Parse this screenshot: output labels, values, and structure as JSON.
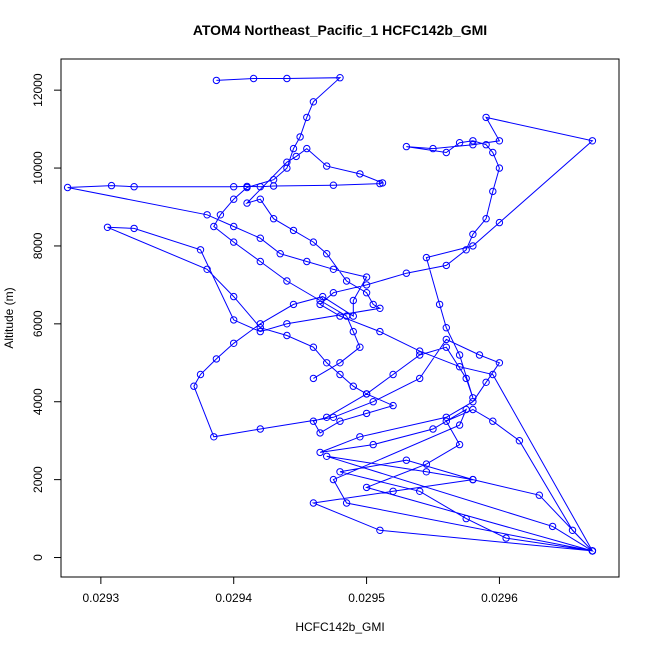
{
  "chart_data": {
    "type": "line",
    "title": "ATOM4 Northeast_Pacific_1 HCFC142b_GMI",
    "xlabel": "HCFC142b_GMI",
    "ylabel": "Altitude (m)",
    "xlim": [
      0.02927,
      0.02969
    ],
    "ylim": [
      -500,
      12800
    ],
    "x_ticks": [
      "0.0293",
      "0.0294",
      "0.0295",
      "0.0296"
    ],
    "y_ticks": [
      "0",
      "2000",
      "4000",
      "6000",
      "8000",
      "10000",
      "12000"
    ],
    "grid": false,
    "legend": "none",
    "series_color": "#0000ff",
    "marker": "open-circle",
    "series": [
      {
        "x": [
          0.02967,
          0.029605,
          0.029575,
          0.02954,
          0.02948,
          0.02953,
          0.02958,
          0.02963,
          0.02967,
          0.0295,
          0.029545,
          0.02957,
          0.02956,
          0.02958,
          0.029595,
          0.029615,
          0.029655,
          0.02967,
          0.02951,
          0.02946,
          0.02952,
          0.02958,
          0.029545,
          0.02947,
          0.02964,
          0.02967,
          0.029485,
          0.029475,
          0.02957,
          0.029575,
          0.02955,
          0.029505,
          0.029465,
          0.029495,
          0.02956,
          0.02958,
          0.02959,
          0.0296,
          0.029585,
          0.02956,
          0.02954,
          0.029505,
          0.029475,
          0.02942,
          0.029385,
          0.02937,
          0.029375,
          0.029387,
          0.0294,
          0.02942,
          0.029445,
          0.029467,
          0.02949,
          0.02949,
          0.0295,
          0.029475,
          0.029455,
          0.029435,
          0.02942,
          0.0294,
          0.02938,
          0.029275,
          0.029308,
          0.029325,
          0.0294,
          0.02941,
          0.02942,
          0.02943,
          0.029475,
          0.02951,
          0.029512,
          0.029495,
          0.02947,
          0.029455,
          0.029447,
          0.02944,
          0.02941,
          0.02942,
          0.02943,
          0.029445,
          0.02946,
          0.02947,
          0.029485,
          0.0295,
          0.029505,
          0.02951,
          0.02944,
          0.02942,
          0.0294,
          0.029375,
          0.029325,
          0.029305,
          0.02938,
          0.0294,
          0.02942,
          0.02944,
          0.02946,
          0.02947,
          0.02948,
          0.02949,
          0.0295,
          0.02952,
          0.0295,
          0.02948,
          0.029465,
          0.02946,
          0.02947,
          0.0295,
          0.02952,
          0.02954,
          0.02956,
          0.029575,
          0.02958,
          0.02957,
          0.02956,
          0.029555,
          0.029545,
          0.02958,
          0.0296,
          0.02967,
          0.02959,
          0.0296,
          0.02958,
          0.02955,
          0.02953,
          0.02956,
          0.02957,
          0.02958,
          0.02959,
          0.029595,
          0.0296,
          0.029595,
          0.02959,
          0.02958,
          0.029575,
          0.02956,
          0.02953,
          0.0295,
          0.029475,
          0.029465,
          0.02948,
          0.02951,
          0.02954,
          0.02957,
          0.029595,
          0.02967
        ],
        "y": [
          170,
          500,
          1000,
          1700,
          2200,
          2500,
          2000,
          1600,
          170,
          1800,
          2400,
          2900,
          3500,
          3800,
          3500,
          3000,
          700,
          170,
          700,
          1400,
          1700,
          2000,
          2200,
          2600,
          800,
          170,
          1400,
          2000,
          3400,
          3800,
          3300,
          2900,
          2700,
          3100,
          3600,
          4000,
          4500,
          5000,
          5200,
          5600,
          4600,
          4000,
          3600,
          3300,
          3100,
          4400,
          4700,
          5100,
          5500,
          6000,
          6500,
          6700,
          6200,
          6600,
          7200,
          7400,
          7600,
          7800,
          8200,
          8500,
          8800,
          9500,
          9550,
          9520,
          9520,
          9530,
          9520,
          9540,
          9560,
          9600,
          9620,
          9850,
          10050,
          10500,
          10300,
          10150,
          9100,
          9200,
          8700,
          8400,
          8100,
          7800,
          7100,
          6800,
          6500,
          6400,
          6000,
          5800,
          6100,
          7900,
          8450,
          8480,
          7400,
          6700,
          5900,
          5700,
          5400,
          5000,
          4700,
          4400,
          4200,
          3900,
          3700,
          3500,
          3200,
          3500,
          3600,
          4200,
          4700,
          5200,
          5400,
          4600,
          4100,
          5200,
          5900,
          6500,
          7700,
          8000,
          8600,
          10700,
          11300,
          10700,
          10600,
          10500,
          10550,
          10400,
          10650,
          10700,
          10600,
          10400,
          10000,
          9400,
          8700,
          8300,
          7900,
          7500,
          7300,
          7000,
          6800,
          6500,
          6200,
          5800,
          5300,
          4900,
          4700,
          170
        ],
        "y_upper_excursion": {
          "x": [
            0.029387,
            0.029415,
            0.02944,
            0.02948,
            0.02946,
            0.029455,
            0.02945,
            0.029445,
            0.02944,
            0.02943,
            0.02941,
            0.0294,
            0.02939,
            0.029385,
            0.0294,
            0.02942,
            0.02944,
            0.029465,
            0.029485,
            0.02949,
            0.029495,
            0.02948,
            0.02946
          ],
          "y": [
            12250,
            12300,
            12300,
            12320,
            11700,
            11300,
            10800,
            10500,
            10000,
            9700,
            9500,
            9200,
            8800,
            8500,
            8100,
            7600,
            7100,
            6600,
            6200,
            5800,
            5400,
            5000,
            4600
          ]
        }
      }
    ]
  }
}
